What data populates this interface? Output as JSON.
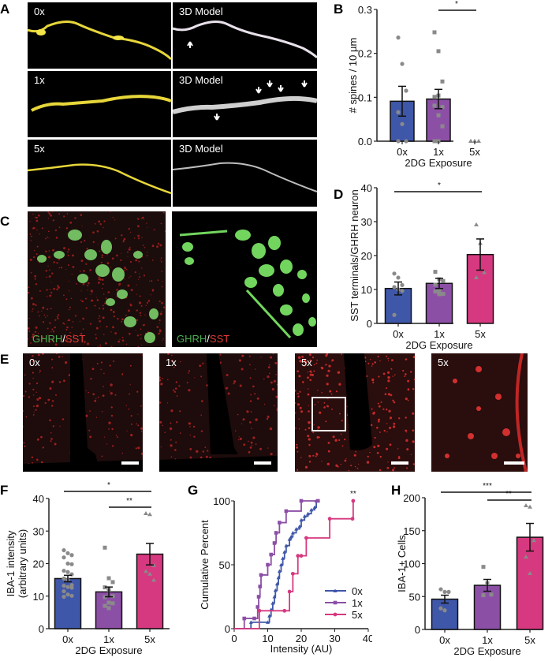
{
  "figure": {
    "panels": {
      "A": {
        "letter": "A",
        "rows": [
          {
            "left_label": "0x",
            "right_label": "3D Model"
          },
          {
            "left_label": "1x",
            "right_label": "3D Model"
          },
          {
            "left_label": "5x",
            "right_label": "3D Model"
          }
        ]
      },
      "B": {
        "letter": "B"
      },
      "C": {
        "letter": "C",
        "images": [
          {
            "label_green": "GHRH",
            "label_sep": "/",
            "label_red": "SST"
          },
          {
            "label_green": "GHRH",
            "label_sep": "/",
            "label_red": "SST"
          }
        ]
      },
      "D": {
        "letter": "D"
      },
      "E": {
        "letter": "E",
        "images": [
          {
            "label": "0x"
          },
          {
            "label": "1x"
          },
          {
            "label": "5x"
          },
          {
            "label": "5x"
          }
        ]
      },
      "F": {
        "letter": "F"
      },
      "G": {
        "letter": "G"
      },
      "H": {
        "letter": "H"
      }
    },
    "colors": {
      "0x": "#3f57a8",
      "1x": "#8c4fa6",
      "5x": "#d6397f",
      "points": "#8a8a8a",
      "ghrh_green": "#4caf50",
      "sst_red": "#e53935"
    }
  },
  "chart_data": [
    {
      "id": "B",
      "type": "bar",
      "title": "",
      "xlabel": "2DG Exposure",
      "ylabel": "# spines / 10 µm",
      "categories": [
        "0x",
        "1x",
        "5x"
      ],
      "values": [
        0.091,
        0.096,
        0.0
      ],
      "sem": [
        0.034,
        0.022,
        0.0
      ],
      "ylim": [
        0.0,
        0.3
      ],
      "yticks": [
        "0.0",
        "0.1",
        "0.2",
        "0.3"
      ],
      "points": {
        "0x": [
          0.236,
          0.176,
          0.115,
          0.066,
          0.039,
          0.0,
          0.0
        ],
        "1x": [
          0.248,
          0.205,
          0.136,
          0.101,
          0.104,
          0.078,
          0.081,
          0.059,
          0.034,
          0.0,
          0.0
        ],
        "5x": [
          0.0,
          0.0,
          0.0,
          0.0,
          0.0
        ]
      },
      "significance": [
        {
          "from": "1x",
          "to": "5x",
          "label": "*"
        }
      ]
    },
    {
      "id": "D",
      "type": "bar",
      "title": "",
      "xlabel": "2DG Exposure",
      "ylabel": "SST terminals/GHRH neuron",
      "categories": [
        "0x",
        "1x",
        "5x"
      ],
      "values": [
        10.3,
        11.8,
        20.3
      ],
      "sem": [
        1.9,
        1.5,
        4.6
      ],
      "ylim": [
        0,
        40
      ],
      "yticks": [
        "0",
        "10",
        "20",
        "30",
        "40"
      ],
      "points": {
        "0x": [
          14.7,
          13.5,
          11.3,
          10.7,
          10.0,
          9.6,
          2.5
        ],
        "1x": [
          15.2,
          13.0,
          12.5,
          11.4,
          9.5,
          8.7,
          9.4,
          8.6
        ],
        "5x": [
          29.1,
          23.6,
          15.0,
          13.5
        ]
      },
      "significance": [
        {
          "from": "0x",
          "to": "5x",
          "label": "*"
        }
      ]
    },
    {
      "id": "F",
      "type": "bar",
      "title": "",
      "xlabel": "2DG Exposure",
      "ylabel": "IBA-1 intensity (arbitrary units)",
      "categories": [
        "0x",
        "1x",
        "5x"
      ],
      "values": [
        15.4,
        11.3,
        22.9
      ],
      "sem": [
        1.0,
        1.5,
        3.3
      ],
      "ylim": [
        0,
        40
      ],
      "yticks": [
        "0",
        "10",
        "20",
        "30",
        "40"
      ],
      "points": {
        "0x": [
          24.1,
          23.2,
          22.6,
          21.9,
          20.0,
          19.8,
          17.8,
          17.4,
          16.7,
          15.4,
          15.0,
          13.4,
          13.2,
          12.8,
          12.6,
          11.5,
          10.5,
          10.1,
          9.8
        ],
        "1x": [
          24.9,
          15.5,
          14.3,
          12.7,
          11.9,
          10.0,
          9.7,
          8.0,
          7.8,
          7.0,
          6.3
        ],
        "5x": [
          35.4,
          35.1,
          19.5,
          17.6,
          16.8,
          14.9
        ]
      },
      "significance": [
        {
          "from": "0x",
          "to": "5x",
          "label": "*"
        },
        {
          "from": "1x",
          "to": "5x",
          "label": "**"
        }
      ]
    },
    {
      "id": "G",
      "type": "line",
      "step": true,
      "title": "",
      "xlabel": "Intensity (AU)",
      "ylabel": "Cumulative  Percent",
      "xlim": [
        0,
        40
      ],
      "ylim": [
        0,
        100
      ],
      "xticks": [
        "0",
        "10",
        "20",
        "30",
        "40"
      ],
      "yticks": [
        "0",
        "50",
        "100"
      ],
      "legend": {
        "position": "lower right",
        "entries": [
          "0x",
          "1x",
          "5x"
        ]
      },
      "annotation": "**",
      "series": [
        {
          "name": "0x",
          "marker": "triangle",
          "x": [
            5,
            10,
            10.5,
            11,
            11.5,
            12,
            12.3,
            12.8,
            13.2,
            13.5,
            14,
            14.5,
            15,
            15.5,
            16.5,
            17,
            17.5,
            18.5,
            19.5,
            20,
            21,
            22,
            23,
            24,
            24.5
          ],
          "y": [
            5,
            5,
            10,
            15,
            20,
            25,
            30,
            35,
            40,
            45,
            50,
            55,
            60,
            65,
            70,
            72,
            75,
            78,
            80,
            85,
            88,
            90,
            93,
            95,
            100
          ]
        },
        {
          "name": "1x",
          "marker": "square",
          "x": [
            3,
            6,
            7,
            7.3,
            7.7,
            8,
            10,
            11,
            12,
            12.5,
            13.5,
            15.5,
            20,
            25
          ],
          "y": [
            8,
            8,
            17,
            25,
            33,
            42,
            50,
            58,
            67,
            75,
            83,
            92,
            100,
            100
          ]
        },
        {
          "name": "5x",
          "marker": "circle",
          "x": [
            7.5,
            15,
            16.5,
            17.5,
            19,
            20,
            21.5,
            28.5,
            35.3,
            35.5
          ],
          "y": [
            14,
            14,
            29,
            43,
            57,
            57,
            71,
            86,
            86,
            100
          ]
        }
      ]
    },
    {
      "id": "H",
      "type": "bar",
      "title": "",
      "xlabel": "2DG Exposure",
      "ylabel": "IBA-1+ Cells",
      "categories": [
        "0x",
        "1x",
        "5x"
      ],
      "values": [
        46,
        67,
        140
      ],
      "sem": [
        6,
        9,
        21
      ],
      "ylim": [
        0,
        200
      ],
      "yticks": [
        "0",
        "50",
        "100",
        "150",
        "200"
      ],
      "points": {
        "0x": [
          61,
          57,
          57,
          32,
          29
        ],
        "1x": [
          95,
          70,
          53,
          52
        ],
        "5x": [
          188,
          186,
          135,
          110,
          85
        ]
      },
      "significance": [
        {
          "from": "0x",
          "to": "5x",
          "label": "***"
        },
        {
          "from": "1x",
          "to": "5x",
          "label": "**"
        }
      ]
    }
  ]
}
